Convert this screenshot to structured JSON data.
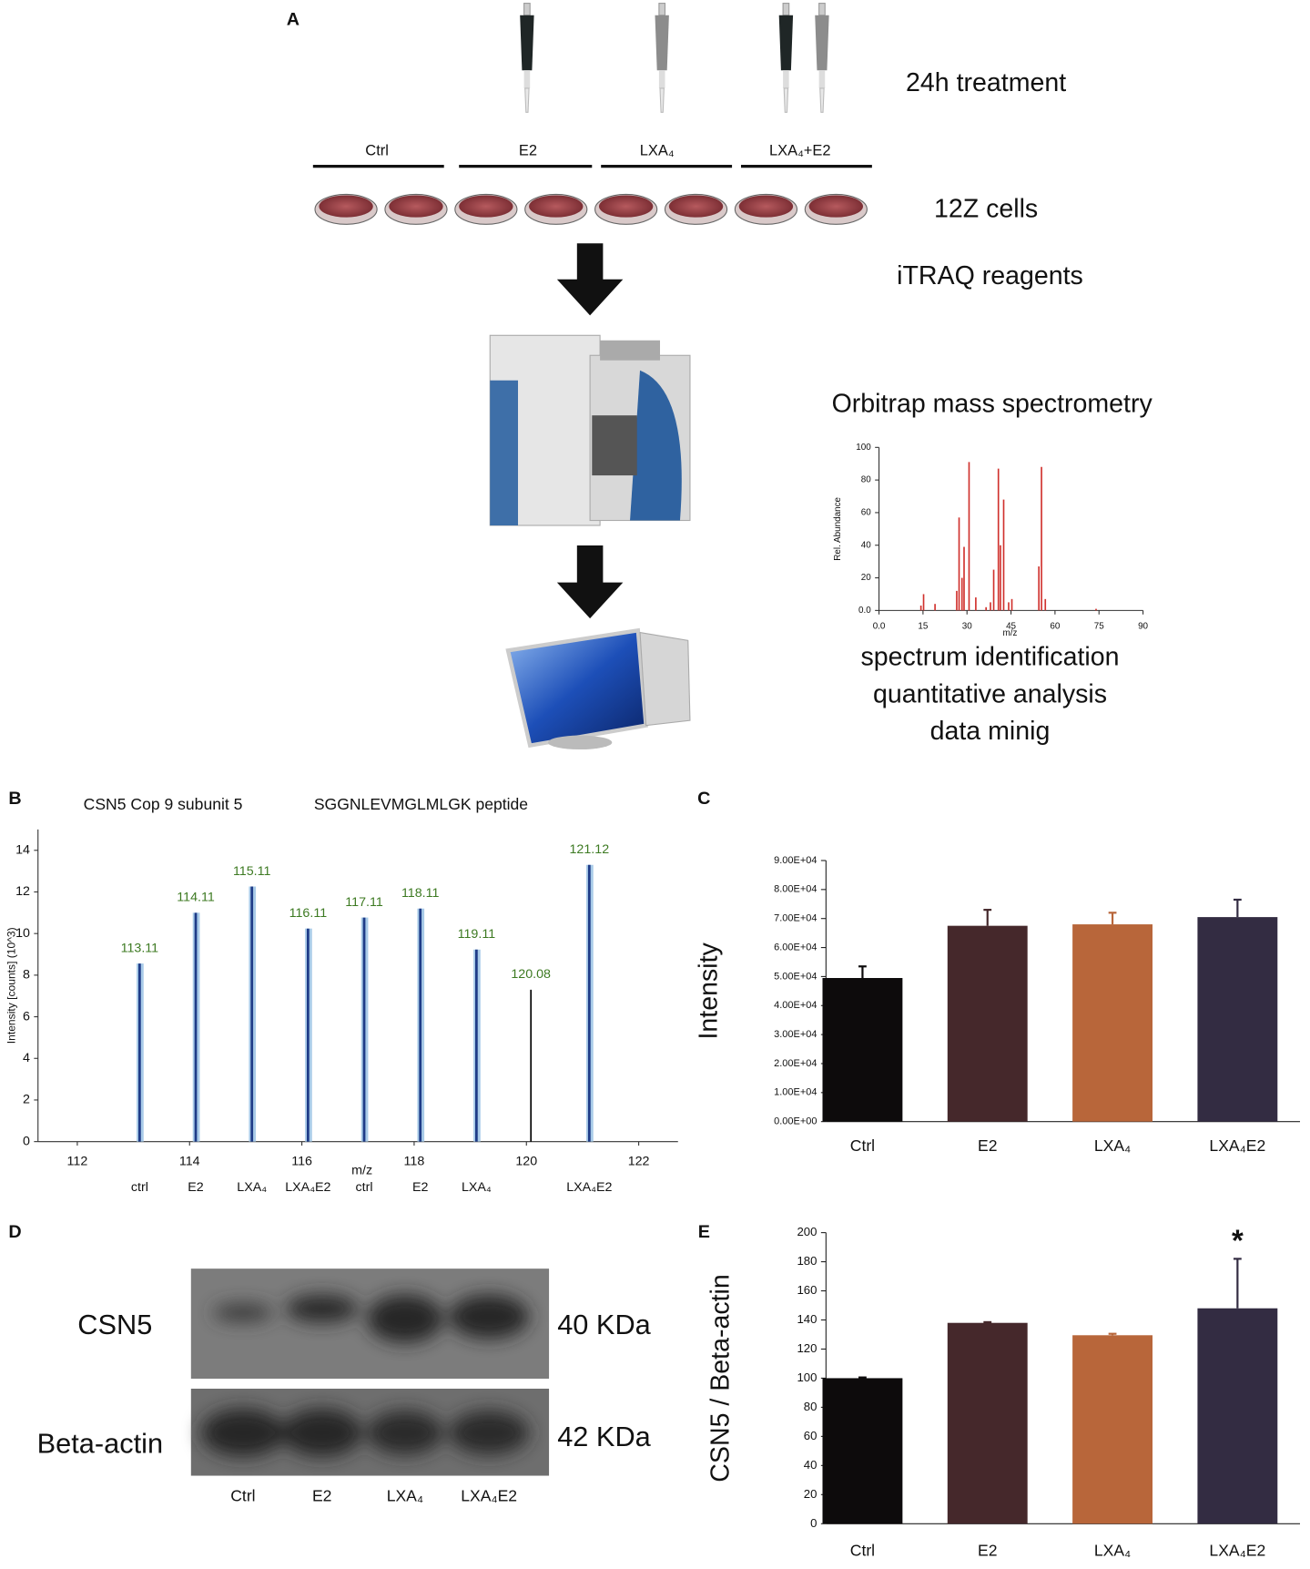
{
  "panel_a": {
    "label": "A",
    "treatment": "24h treatment",
    "groups": [
      "Ctrl",
      "E2",
      "LXA₄",
      "LXA₄+E2"
    ],
    "cells": "12Z cells",
    "reagents": "iTRAQ reagents",
    "instrument": "Orbitrap mass spectrometry",
    "analysis": [
      "spectrum identification",
      "quantitative analysis",
      "data minig"
    ]
  },
  "chart_data": [
    {
      "type": "stem",
      "xlabel": "m/z",
      "ylabel": "Rel. Abundance",
      "color": "#d0312d",
      "x": [
        14.3,
        15.2,
        19.1,
        26.5,
        27.3,
        28.3,
        29.0,
        30.7,
        33.0,
        36.5,
        38.0,
        39.1,
        40.7,
        41.4,
        42.5,
        44.2,
        45.3,
        54.5,
        55.4,
        56.7,
        74.0
      ],
      "values": [
        3,
        10,
        4,
        12,
        57,
        20,
        39,
        91,
        8,
        2,
        5,
        25,
        87,
        40,
        68,
        5,
        7,
        27,
        88,
        7,
        1
      ],
      "xlim": [
        0,
        90
      ],
      "ylim": [
        0,
        100
      ],
      "xticks": [
        {
          "value": 0,
          "label": "0.0"
        },
        15,
        30,
        45,
        60,
        75,
        90
      ],
      "yticks": [
        {
          "value": 0,
          "label": "0.0"
        },
        20,
        40,
        60,
        80,
        100
      ]
    },
    {
      "type": "stem",
      "label": "B",
      "title": "CSN5 Cop 9 subunit 5",
      "subtitle": "SGGNLEVMGLMLGK peptide",
      "ylabel": "Intensity [counts] (10^3)",
      "xlabel": "m/z",
      "x": [
        113.11,
        114.11,
        115.11,
        116.11,
        117.11,
        118.11,
        119.11,
        120.08,
        121.12
      ],
      "values": [
        8.56,
        11.0,
        12.26,
        10.24,
        10.77,
        11.2,
        9.23,
        7.3,
        13.3
      ],
      "colors": [
        "#1f3c88",
        "#1f3c88",
        "#1f3c88",
        "#1f3c88",
        "#1f3c88",
        "#1f3c88",
        "#1f3c88",
        "#000000",
        "#1f3c88"
      ],
      "halo_colors": [
        "#a9cbe8",
        "#a9cbe8",
        "#a9cbe8",
        "#a9cbe8",
        "#a9cbe8",
        "#a9cbe8",
        "#a9cbe8",
        null,
        "#a9cbe8"
      ],
      "peak_labels": true,
      "label_color": "#3d7a22",
      "channel_labels": [
        "ctrl",
        "E2",
        "LXA₄",
        "LXA₄E2",
        "ctrl",
        "E2",
        "LXA₄",
        null,
        "LXA₄E2"
      ],
      "xlim": [
        111.3,
        122.7
      ],
      "ylim": [
        0,
        15
      ],
      "xticks": [
        112,
        114,
        116,
        118,
        120,
        122
      ],
      "yticks": [
        0,
        2,
        4,
        6,
        8,
        10,
        12,
        14
      ]
    },
    {
      "type": "bar",
      "label": "C",
      "ylabel": "Intensity",
      "categories": [
        "Ctrl",
        "E2",
        "LXA₄",
        "LXA₄E2"
      ],
      "values": [
        49500,
        67500,
        68000,
        70500
      ],
      "errors": [
        4000,
        5500,
        4000,
        6000
      ],
      "colors": [
        "#0d0b0c",
        "#45282b",
        "#b8663a",
        "#332c42"
      ],
      "ylim": [
        0,
        90000
      ],
      "yticks": [
        {
          "value": 0,
          "label": "0.00E+00"
        },
        {
          "value": 10000,
          "label": "1.00E+04"
        },
        {
          "value": 20000,
          "label": "2.00E+04"
        },
        {
          "value": 30000,
          "label": "3.00E+04"
        },
        {
          "value": 40000,
          "label": "4.00E+04"
        },
        {
          "value": 50000,
          "label": "5.00E+04"
        },
        {
          "value": 60000,
          "label": "6.00E+04"
        },
        {
          "value": 70000,
          "label": "7.00E+04"
        },
        {
          "value": 80000,
          "label": "8.00E+04"
        },
        {
          "value": 90000,
          "label": "9.00E+04"
        }
      ]
    },
    {
      "type": "bar",
      "label": "E",
      "ylabel": "CSN5 / Beta-actin",
      "annotation": "*",
      "categories": [
        "Ctrl",
        "E2",
        "LXA₄",
        "LXA₄E2"
      ],
      "values": [
        100,
        138,
        129.5,
        148
      ],
      "errors": [
        0.5,
        0.5,
        1,
        34
      ],
      "colors": [
        "#0d0b0c",
        "#45282b",
        "#b8663a",
        "#332c42"
      ],
      "ylim": [
        0,
        200
      ],
      "yticks": [
        0,
        20,
        40,
        60,
        80,
        100,
        120,
        140,
        160,
        180,
        200
      ]
    }
  ],
  "panel_d": {
    "label": "D",
    "bands": [
      "CSN5",
      "Beta-actin"
    ],
    "sizes": [
      "40 KDa",
      "42 KDa"
    ],
    "lanes": [
      "Ctrl",
      "E2",
      "LXA₄",
      "LXA₄E2"
    ]
  }
}
